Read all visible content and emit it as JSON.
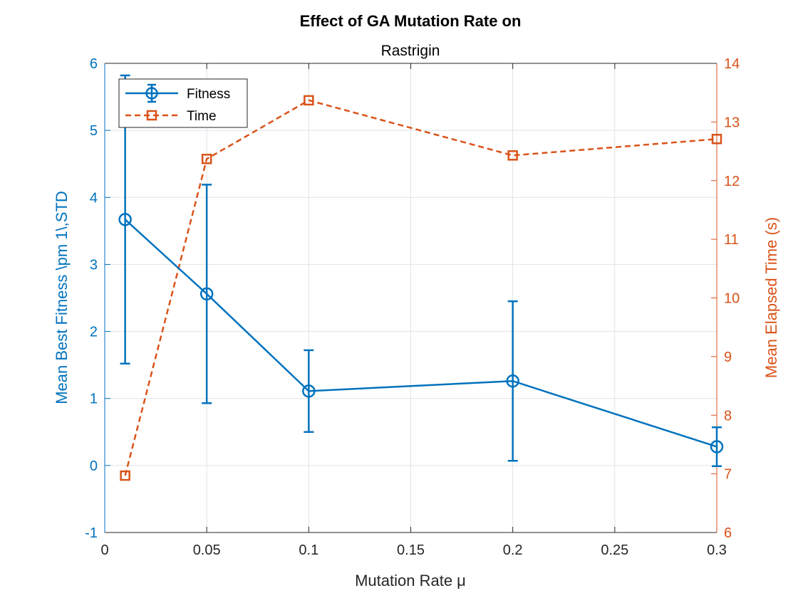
{
  "chart_data": {
    "type": "line",
    "title": "Effect of GA Mutation Rate on",
    "subtitle": "Rastrigin",
    "xlabel": "Mutation Rate μ",
    "ylabel_left": "Mean Best Fitness \\pm 1\\,STD",
    "ylabel_right": "Mean Elapsed Time (s)",
    "xlim": [
      0,
      0.3
    ],
    "ylim_left": [
      -1,
      6
    ],
    "ylim_right": [
      6,
      14
    ],
    "x_ticks": [
      "0",
      "0.05",
      "0.1",
      "0.15",
      "0.2",
      "0.25",
      "0.3"
    ],
    "y_left_ticks": [
      "-1",
      "0",
      "1",
      "2",
      "3",
      "4",
      "5",
      "6"
    ],
    "y_right_ticks": [
      "6",
      "7",
      "8",
      "9",
      "10",
      "11",
      "12",
      "13",
      "14"
    ],
    "grid": true,
    "legend_position": "top-left",
    "x": [
      0.01,
      0.05,
      0.1,
      0.2,
      0.3
    ],
    "series": [
      {
        "name": "Fitness",
        "axis": "left",
        "color": "#0072bd",
        "marker": "circle",
        "line_style": "solid",
        "values": [
          3.67,
          2.56,
          1.11,
          1.26,
          0.28
        ],
        "std": [
          2.15,
          1.63,
          0.61,
          1.19,
          0.29
        ]
      },
      {
        "name": "Time",
        "axis": "right",
        "color": "#d95319",
        "marker": "square",
        "line_style": "dashed",
        "values": [
          6.97,
          12.37,
          13.37,
          12.43,
          12.71
        ]
      }
    ]
  }
}
